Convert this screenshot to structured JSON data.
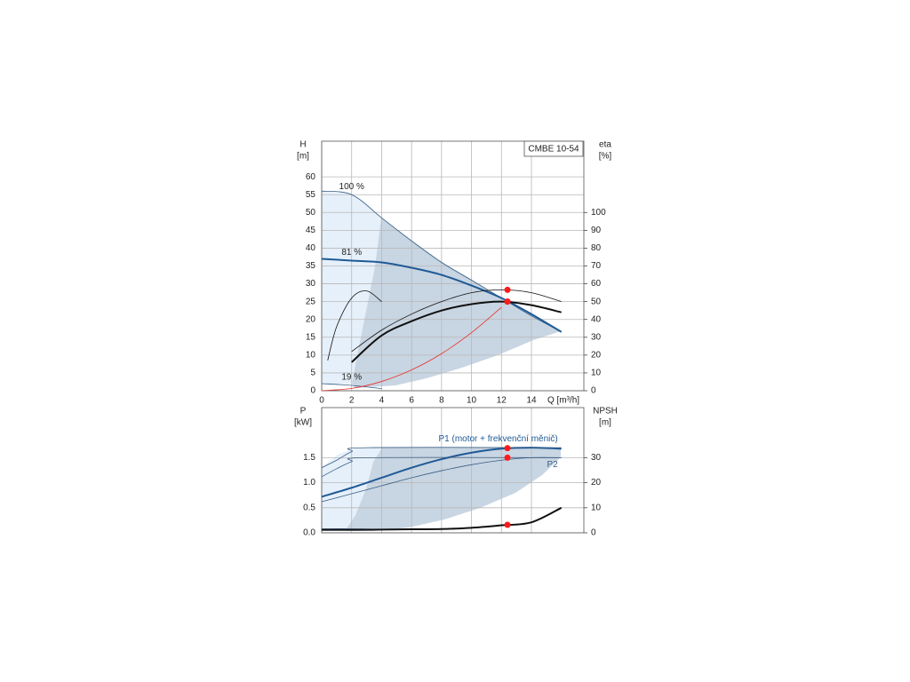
{
  "chart_data": [
    {
      "type": "line",
      "title": "CMBE 10-54",
      "x_label": "Q [m³/h]",
      "y_label": "H",
      "y_unit": "[m]",
      "y2_label": "eta",
      "y2_unit": "[%]",
      "x": [
        0,
        2,
        4,
        6,
        8,
        10,
        12,
        14,
        16
      ],
      "xlim": [
        0,
        17.5
      ],
      "xticks": [
        0,
        2,
        4,
        6,
        8,
        10,
        12,
        14
      ],
      "ylim": [
        0,
        70
      ],
      "yticks": [
        0,
        5,
        10,
        15,
        20,
        25,
        30,
        35,
        40,
        45,
        50,
        55,
        60
      ],
      "y2lim": [
        0,
        140
      ],
      "y2ticks": [
        0,
        10,
        20,
        30,
        40,
        50,
        60,
        70,
        80,
        90,
        100
      ],
      "grid": true,
      "series": [
        {
          "name": "100 %",
          "color": "#3a5f85",
          "line_width": 0.8,
          "values": [
            56,
            55,
            48.5,
            42,
            36,
            31,
            26,
            21,
            16.5
          ]
        },
        {
          "name": "81 %",
          "color": "#1f5a96",
          "line_width": 2,
          "values": [
            37,
            36.5,
            36,
            34.5,
            32.5,
            29.5,
            26,
            21.5,
            16.5
          ]
        },
        {
          "name": "19 %",
          "color": "#3a5f85",
          "line_width": 0.8,
          "values": [
            2,
            1.5,
            0.6,
            null,
            null,
            null,
            null,
            null,
            null
          ]
        },
        {
          "color": "#e8322b",
          "line_width": 0.8,
          "values": [
            0,
            0.65,
            2.6,
            5.85,
            10.4,
            16.3,
            23.4,
            null,
            null
          ]
        },
        {
          "color": "#111111",
          "line_width": 0.8,
          "axis": "y2",
          "values": [
            null,
            22,
            34,
            43,
            50,
            55,
            56.6,
            55,
            50
          ]
        },
        {
          "color": "#111111",
          "line_width": 2,
          "axis": "y2",
          "values": [
            null,
            16,
            31,
            39,
            45,
            48.6,
            50,
            48,
            44
          ]
        },
        {
          "color": "#111111",
          "line_width": 0.8,
          "axis": "y2",
          "x": [
            0.4,
            1,
            2,
            3,
            4
          ],
          "values": [
            17,
            36,
            52,
            56,
            50
          ]
        }
      ],
      "points": [
        {
          "x": 12.4,
          "y": 25
        },
        {
          "x": 12.4,
          "y": 56.6,
          "axis": "y2"
        },
        {
          "x": 12.4,
          "y": 50,
          "axis": "y2"
        }
      ]
    },
    {
      "type": "line",
      "y_label": "P",
      "y_unit": "[kW]",
      "y2_label": "NPSH",
      "y2_unit": "[m]",
      "x": [
        0,
        2,
        4,
        6,
        8,
        10,
        12,
        14,
        16
      ],
      "xlim": [
        0,
        17.5
      ],
      "xticks": [
        0,
        2,
        4,
        6,
        8,
        10,
        12,
        14
      ],
      "show_x_labels": false,
      "ylim": [
        0,
        2.5
      ],
      "yticks": [
        {
          "value": 0,
          "label": "0.0"
        },
        0.5,
        {
          "value": 1,
          "label": "1.0"
        },
        1.5
      ],
      "y2lim": [
        0,
        50
      ],
      "y2ticks": [
        0,
        10,
        20,
        30
      ],
      "grid": true,
      "series": [
        {
          "name": "P1 (motor + frekvenční měnič)",
          "color": "#1f5a96",
          "line_width": 2,
          "values": [
            0.72,
            0.9,
            1.1,
            1.3,
            1.47,
            1.6,
            1.68,
            1.7,
            1.68
          ]
        },
        {
          "name": "P2",
          "color": "#3a5f85",
          "line_width": 0.8,
          "values": [
            0.62,
            0.78,
            0.94,
            1.1,
            1.24,
            1.36,
            1.45,
            1.5,
            1.5
          ]
        },
        {
          "color": "#3a5f85",
          "line_width": 0.8,
          "x": [
            0,
            1,
            2,
            3,
            16
          ],
          "values": [
            1.3,
            1.45,
            1.62,
            1.7,
            1.7
          ]
        },
        {
          "color": "#3a5f85",
          "line_width": 0.8,
          "x": [
            0,
            1,
            2,
            3,
            16
          ],
          "values": [
            1.12,
            1.28,
            1.42,
            1.5,
            1.5
          ]
        },
        {
          "color": "#3a5f85",
          "line_width": 0.8,
          "x": [
            0,
            2,
            4
          ],
          "values": [
            0.08,
            0.08,
            0.07
          ]
        },
        {
          "color": "#111111",
          "line_width": 2,
          "axis": "y2",
          "values": [
            1.2,
            1.2,
            1.3,
            1.4,
            1.5,
            2,
            3,
            4.2,
            10
          ]
        }
      ],
      "points": [
        {
          "x": 12.4,
          "y": 1.69
        },
        {
          "x": 12.4,
          "y": 1.5
        },
        {
          "x": 12.4,
          "y": 3.2,
          "axis": "y2"
        }
      ]
    }
  ]
}
